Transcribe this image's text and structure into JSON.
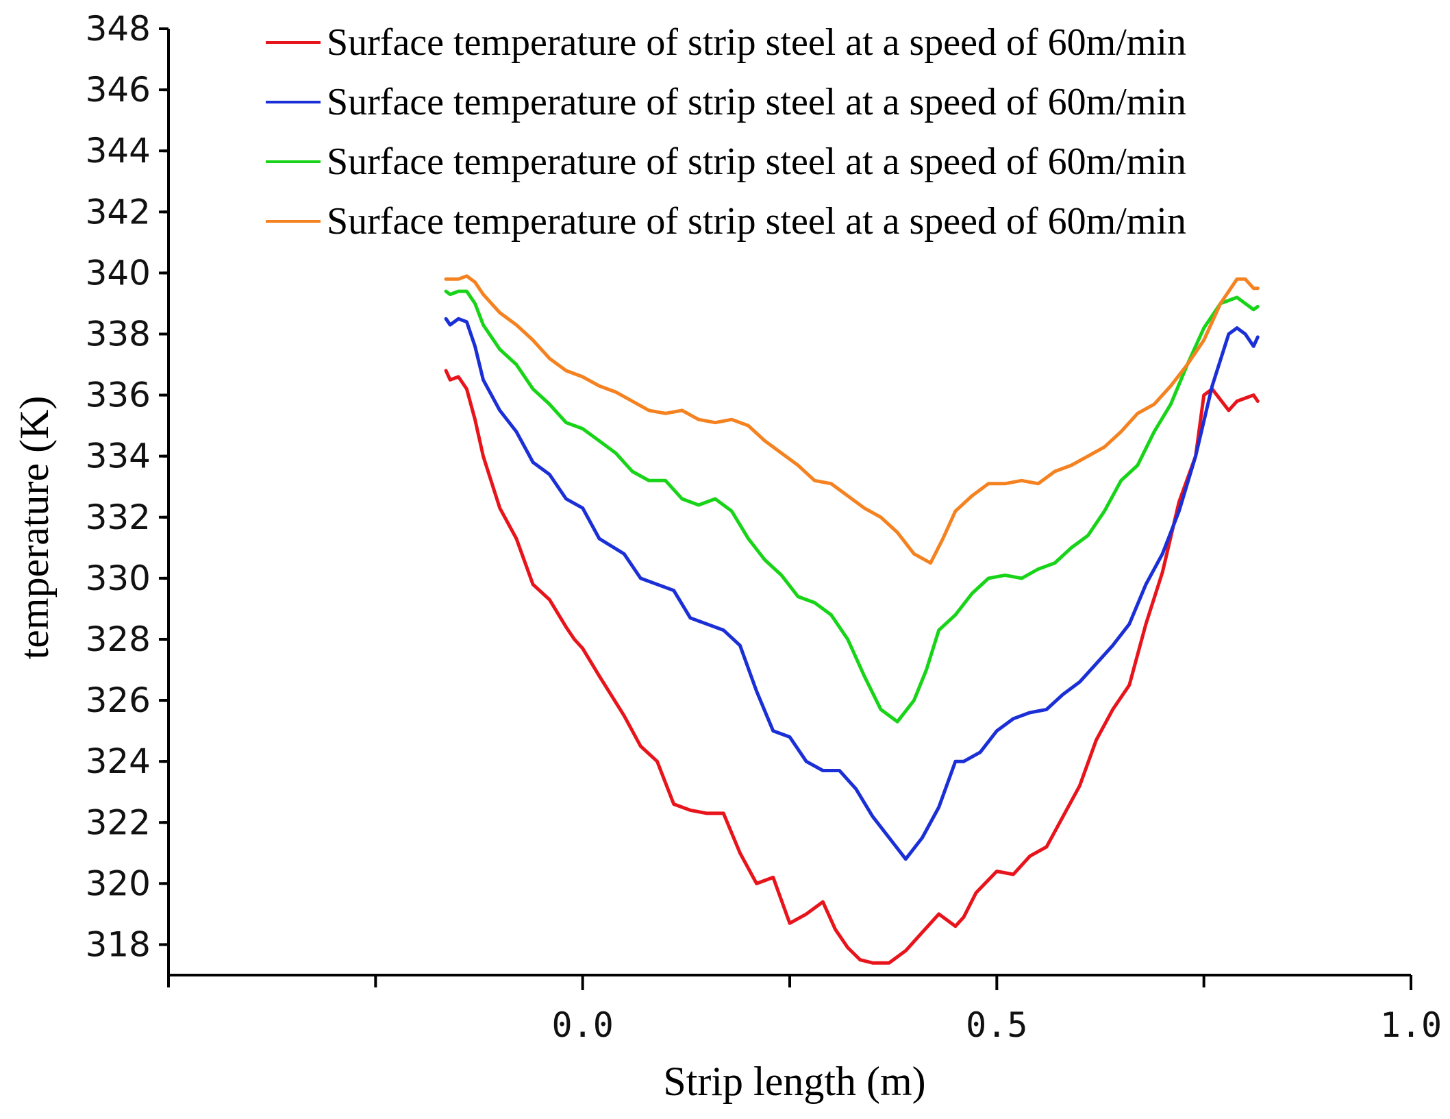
{
  "chart_data": {
    "type": "line",
    "title": "",
    "xlabel": "Strip length (m)",
    "ylabel": "temperature (K)",
    "xlim": [
      -0.5,
      1.0
    ],
    "ylim": [
      317,
      348
    ],
    "x_ticks": [
      {
        "value": 0.0,
        "label": "0.0"
      },
      {
        "value": 0.5,
        "label": "0.5"
      },
      {
        "value": 1.0,
        "label": "1.0"
      }
    ],
    "x_minor_ticks": [
      -0.5,
      -0.25,
      0.25,
      0.75
    ],
    "y_ticks": [
      318,
      320,
      322,
      324,
      326,
      328,
      330,
      332,
      334,
      336,
      338,
      340,
      342,
      344,
      346,
      348
    ],
    "legend_position": "top-right",
    "series": [
      {
        "name": "Surface temperature of strip steel at a speed of 60m/min",
        "color": "#e8141b",
        "x": [
          -0.165,
          -0.16,
          -0.15,
          -0.14,
          -0.13,
          -0.12,
          -0.1,
          -0.08,
          -0.06,
          -0.04,
          -0.02,
          -0.01,
          0.0,
          0.02,
          0.05,
          0.07,
          0.09,
          0.11,
          0.13,
          0.15,
          0.17,
          0.19,
          0.21,
          0.23,
          0.25,
          0.27,
          0.29,
          0.305,
          0.32,
          0.335,
          0.35,
          0.37,
          0.39,
          0.41,
          0.43,
          0.45,
          0.46,
          0.475,
          0.5,
          0.52,
          0.54,
          0.56,
          0.58,
          0.6,
          0.62,
          0.64,
          0.66,
          0.68,
          0.7,
          0.72,
          0.74,
          0.75,
          0.76,
          0.78,
          0.79,
          0.8,
          0.81,
          0.815
        ],
        "values": [
          336.8,
          336.5,
          336.6,
          336.2,
          335.2,
          334.0,
          332.3,
          331.3,
          329.8,
          329.3,
          328.4,
          328.0,
          327.7,
          326.8,
          325.5,
          324.5,
          324.0,
          322.6,
          322.4,
          322.3,
          322.3,
          321.0,
          320.0,
          320.2,
          318.7,
          319.0,
          319.4,
          318.5,
          317.9,
          317.5,
          317.4,
          317.4,
          317.8,
          318.4,
          319.0,
          318.6,
          318.9,
          319.7,
          320.4,
          320.3,
          320.9,
          321.2,
          322.2,
          323.2,
          324.7,
          325.7,
          326.5,
          328.5,
          330.2,
          332.5,
          334.0,
          336.0,
          336.2,
          335.5,
          335.8,
          335.9,
          336.0,
          335.8
        ]
      },
      {
        "name": "Surface temperature of strip steel at a speed of 60m/min",
        "color": "#1b2fd6",
        "x": [
          -0.165,
          -0.16,
          -0.15,
          -0.14,
          -0.13,
          -0.12,
          -0.1,
          -0.08,
          -0.06,
          -0.04,
          -0.02,
          0.0,
          0.02,
          0.05,
          0.07,
          0.09,
          0.11,
          0.13,
          0.15,
          0.17,
          0.19,
          0.21,
          0.23,
          0.25,
          0.27,
          0.29,
          0.31,
          0.33,
          0.35,
          0.37,
          0.39,
          0.41,
          0.43,
          0.45,
          0.46,
          0.48,
          0.5,
          0.52,
          0.54,
          0.56,
          0.58,
          0.6,
          0.62,
          0.64,
          0.66,
          0.68,
          0.7,
          0.72,
          0.74,
          0.76,
          0.78,
          0.79,
          0.8,
          0.81,
          0.815
        ],
        "values": [
          338.5,
          338.3,
          338.5,
          338.4,
          337.6,
          336.5,
          335.5,
          334.8,
          333.8,
          333.4,
          332.6,
          332.3,
          331.3,
          330.8,
          330.0,
          329.8,
          329.6,
          328.7,
          328.5,
          328.3,
          327.8,
          326.3,
          325.0,
          324.8,
          324.0,
          323.7,
          323.7,
          323.1,
          322.2,
          321.5,
          320.8,
          321.5,
          322.5,
          324.0,
          324.0,
          324.3,
          325.0,
          325.4,
          325.6,
          325.7,
          326.2,
          326.6,
          327.2,
          327.8,
          328.5,
          329.8,
          330.8,
          332.2,
          334.0,
          336.3,
          338.0,
          338.2,
          338.0,
          337.6,
          337.9
        ]
      },
      {
        "name": "Surface temperature of strip steel at a speed of 60m/min",
        "color": "#18d418",
        "x": [
          -0.165,
          -0.16,
          -0.15,
          -0.14,
          -0.13,
          -0.12,
          -0.1,
          -0.08,
          -0.06,
          -0.04,
          -0.02,
          0.0,
          0.02,
          0.04,
          0.06,
          0.08,
          0.1,
          0.12,
          0.14,
          0.16,
          0.18,
          0.2,
          0.22,
          0.24,
          0.26,
          0.28,
          0.3,
          0.32,
          0.34,
          0.36,
          0.38,
          0.4,
          0.415,
          0.43,
          0.45,
          0.47,
          0.49,
          0.51,
          0.53,
          0.55,
          0.57,
          0.59,
          0.61,
          0.63,
          0.65,
          0.67,
          0.69,
          0.71,
          0.73,
          0.75,
          0.77,
          0.79,
          0.8,
          0.81,
          0.815
        ],
        "values": [
          339.4,
          339.3,
          339.4,
          339.4,
          339.0,
          338.3,
          337.5,
          337.0,
          336.2,
          335.7,
          335.1,
          334.9,
          334.5,
          334.1,
          333.5,
          333.2,
          333.2,
          332.6,
          332.4,
          332.6,
          332.2,
          331.3,
          330.6,
          330.1,
          329.4,
          329.2,
          328.8,
          328.0,
          326.8,
          325.7,
          325.3,
          326.0,
          327.0,
          328.3,
          328.8,
          329.5,
          330.0,
          330.1,
          330.0,
          330.3,
          330.5,
          331.0,
          331.4,
          332.2,
          333.2,
          333.7,
          334.8,
          335.7,
          337.0,
          338.2,
          339.0,
          339.2,
          339.0,
          338.8,
          338.9
        ]
      },
      {
        "name": "Surface temperature of strip steel at a speed of 60m/min",
        "color": "#f58220",
        "x": [
          -0.165,
          -0.16,
          -0.15,
          -0.14,
          -0.13,
          -0.12,
          -0.1,
          -0.08,
          -0.06,
          -0.04,
          -0.02,
          0.0,
          0.02,
          0.04,
          0.06,
          0.08,
          0.1,
          0.12,
          0.14,
          0.16,
          0.18,
          0.2,
          0.22,
          0.24,
          0.26,
          0.28,
          0.3,
          0.32,
          0.34,
          0.36,
          0.38,
          0.4,
          0.42,
          0.435,
          0.45,
          0.47,
          0.49,
          0.51,
          0.53,
          0.55,
          0.57,
          0.59,
          0.61,
          0.63,
          0.65,
          0.67,
          0.69,
          0.71,
          0.73,
          0.75,
          0.77,
          0.79,
          0.8,
          0.81,
          0.815
        ],
        "values": [
          339.8,
          339.8,
          339.8,
          339.9,
          339.7,
          339.3,
          338.7,
          338.3,
          337.8,
          337.2,
          336.8,
          336.6,
          336.3,
          336.1,
          335.8,
          335.5,
          335.4,
          335.5,
          335.2,
          335.1,
          335.2,
          335.0,
          334.5,
          334.1,
          333.7,
          333.2,
          333.1,
          332.7,
          332.3,
          332.0,
          331.5,
          330.8,
          330.5,
          331.3,
          332.2,
          332.7,
          333.1,
          333.1,
          333.2,
          333.1,
          333.5,
          333.7,
          334.0,
          334.3,
          334.8,
          335.4,
          335.7,
          336.3,
          337.0,
          337.8,
          339.0,
          339.8,
          339.8,
          339.5,
          339.5
        ]
      }
    ]
  }
}
